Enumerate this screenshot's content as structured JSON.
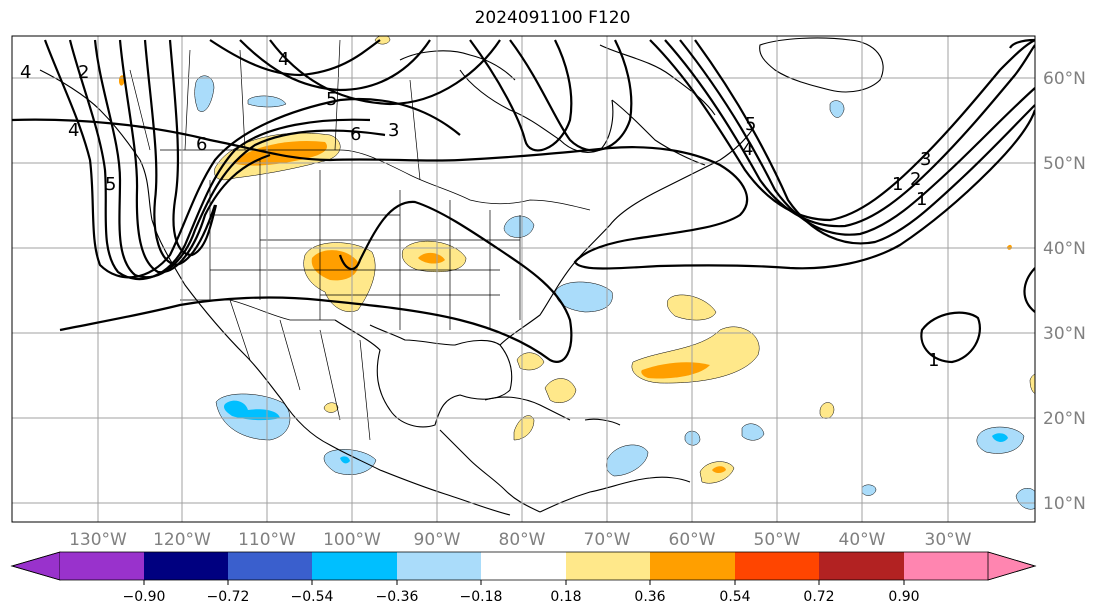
{
  "title": "2024091100 F120",
  "colors": {
    "grid": "#a0a0a0",
    "coast": "#000000",
    "contour": "#000000",
    "pos1": "#ffe88a",
    "pos2": "#ff9f00",
    "neg1": "#aadcfa",
    "neg2": "#00bfff"
  },
  "longitude_labels": [
    "130°W",
    "120°W",
    "110°W",
    "100°W",
    "90°W",
    "80°W",
    "70°W",
    "60°W",
    "50°W",
    "40°W",
    "30°W"
  ],
  "latitude_labels": [
    "60°N",
    "50°N",
    "40°N",
    "30°N",
    "20°N",
    "10°N"
  ],
  "contour_labels": [
    "4",
    "2",
    "6",
    "5",
    "4",
    "5",
    "6",
    "3",
    "5",
    "4",
    "3",
    "2",
    "1",
    "1",
    "1",
    "4"
  ],
  "colorbar": {
    "ticks": [
      "−0.90",
      "−0.72",
      "−0.54",
      "−0.36",
      "−0.18",
      "0.18",
      "0.36",
      "0.54",
      "0.72",
      "0.90"
    ],
    "colors": [
      "#9932cc",
      "#000080",
      "#3a5fcd",
      "#00bfff",
      "#aadcfa",
      "#ffffff",
      "#ffe88a",
      "#ff9f00",
      "#ff4500",
      "#b22222",
      "#ff85b0"
    ]
  }
}
